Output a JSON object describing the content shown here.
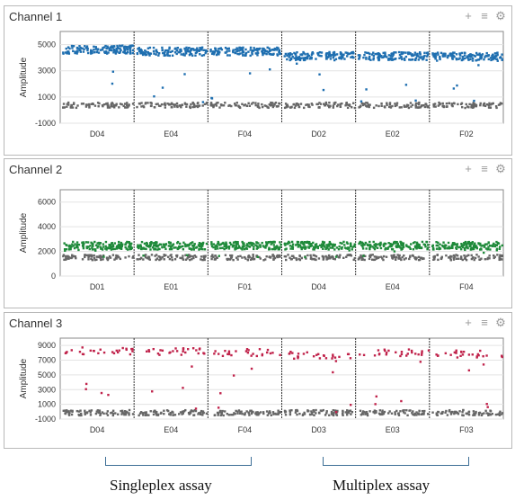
{
  "panels": [
    {
      "title": "Channel 1"
    },
    {
      "title": "Channel 2"
    },
    {
      "title": "Channel 3"
    }
  ],
  "icons": [
    "plus-icon",
    "menu-icon",
    "gear-icon"
  ],
  "annotations": {
    "singleplex": "Singleplex assay",
    "multiplex": "Multiplex assay"
  },
  "chart_data": [
    {
      "type": "scatter",
      "title": "Channel 1",
      "ylabel": "Amplitude",
      "ylim": [
        -1000,
        6000
      ],
      "yticks": [
        -1000,
        1000,
        3000,
        5000
      ],
      "categories": [
        "D04",
        "E04",
        "F04",
        "D02",
        "E02",
        "F02"
      ],
      "color": "#1f6fb0",
      "series": [
        {
          "values": [
            4700,
            4550,
            4550,
            4200,
            4200,
            4150
          ]
        },
        {
          "values": [
            450,
            450,
            450,
            450,
            450,
            450
          ]
        }
      ]
    },
    {
      "type": "scatter",
      "title": "Channel 2",
      "ylabel": "Amplitude",
      "ylim": [
        0,
        7000
      ],
      "yticks": [
        0,
        2000,
        4000,
        6000
      ],
      "categories": [
        "D01",
        "E01",
        "F01",
        "D04",
        "E04",
        "F04"
      ],
      "color": "#1f8a3a",
      "series": [
        {
          "values": [
            2550,
            2550,
            2550,
            2550,
            2550,
            2550
          ]
        },
        {
          "values": [
            1600,
            1600,
            1600,
            1600,
            1600,
            1600
          ]
        }
      ]
    },
    {
      "type": "scatter",
      "title": "Channel 3",
      "ylabel": "Amplitude",
      "ylim": [
        -1000,
        10000
      ],
      "yticks": [
        -1000,
        1000,
        3000,
        5000,
        7000,
        9000
      ],
      "categories": [
        "D04",
        "E04",
        "F04",
        "D03",
        "E03",
        "F03"
      ],
      "color": "#c0234b",
      "series": [
        {
          "values": [
            8400,
            8300,
            8200,
            7800,
            8200,
            8000
          ]
        },
        {
          "values": [
            0,
            0,
            0,
            0,
            0,
            0
          ]
        }
      ]
    }
  ]
}
